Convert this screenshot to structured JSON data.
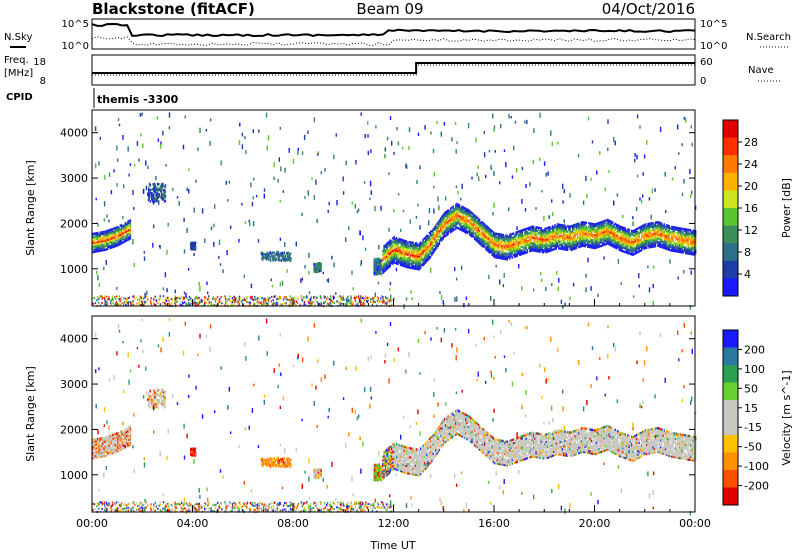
{
  "header": {
    "station": "Blackstone (fitACF)",
    "beam": "Beam 09",
    "date": "04/Oct/2016"
  },
  "top_panels": {
    "nsky_label": "N.Sky",
    "nsearch_label": "N.Search",
    "noise_ticks": [
      "10^5",
      "10^0"
    ],
    "freq_label": "Freq.",
    "freq_unit": "[MHz]",
    "freq_ticks": [
      "18",
      "8"
    ],
    "nave_label": "Nave",
    "nave_ticks": [
      "60",
      "0"
    ],
    "cpid_label": "CPID",
    "cpid_value": "themis -3300"
  },
  "colors": {
    "power": [
      "#1a1aff",
      "#1e3ca8",
      "#2e6f88",
      "#3a8f5a",
      "#5cc42e",
      "#cce51e",
      "#ffb000",
      "#ff7a00",
      "#ff3000",
      "#e00000"
    ],
    "velocity": [
      "#e00000",
      "#ff5000",
      "#ff9000",
      "#ffc000",
      "#c8c8c0",
      "#c8c8c0",
      "#6ad030",
      "#2aa050",
      "#2a7aa0",
      "#1a1aff"
    ],
    "ground": "#c8c8c0"
  },
  "chart_data": [
    {
      "type": "heatmap",
      "panel": "power",
      "ylabel": "Slant Range [km]",
      "xlabel": "",
      "xlim": [
        0,
        24
      ],
      "ylim": [
        180,
        4500
      ],
      "yticks": [
        1000,
        2000,
        3000,
        4000
      ],
      "xticks": [
        "00:00",
        "04:00",
        "08:00",
        "12:00",
        "16:00",
        "20:00",
        "00:00"
      ],
      "colorbar_label": "Power [dB]",
      "colorbar_range": [
        0,
        30
      ],
      "colorbar_ticks": [
        "28",
        "24",
        "20",
        "16",
        "12",
        "8",
        "4"
      ],
      "echo_band_center_km": {
        "hours": [
          0,
          0.5,
          1,
          1.5,
          11.5,
          12,
          12.5,
          13,
          13.5,
          14,
          14.5,
          15,
          15.5,
          16,
          16.5,
          17,
          17.5,
          18,
          18.5,
          19,
          19.5,
          20,
          20.5,
          21,
          21.5,
          22,
          22.5,
          23,
          23.5,
          24
        ],
        "range": [
          1550,
          1600,
          1700,
          1850,
          1150,
          1400,
          1300,
          1250,
          1550,
          1950,
          2150,
          2000,
          1750,
          1500,
          1450,
          1550,
          1650,
          1600,
          1700,
          1650,
          1750,
          1700,
          1800,
          1650,
          1550,
          1700,
          1750,
          1650,
          1600,
          1550
        ]
      }
    },
    {
      "type": "heatmap",
      "panel": "velocity",
      "ylabel": "Slant Range [km]",
      "xlabel": "Time UT",
      "xlim": [
        0,
        24
      ],
      "ylim": [
        180,
        4500
      ],
      "yticks": [
        1000,
        2000,
        3000,
        4000
      ],
      "xticks": [
        "00:00",
        "04:00",
        "08:00",
        "12:00",
        "16:00",
        "20:00",
        "00:00"
      ],
      "colorbar_label": "Velocity [m s^-1]",
      "colorbar_range": [
        -250,
        250
      ],
      "colorbar_ticks": [
        "200",
        "100",
        "50",
        "15",
        "-15",
        "-50",
        "-100",
        "-200"
      ]
    }
  ]
}
